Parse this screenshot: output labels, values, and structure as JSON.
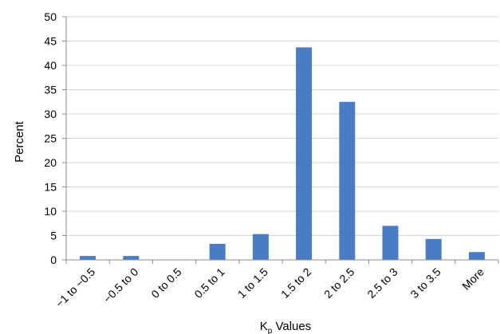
{
  "chart_data": {
    "type": "bar",
    "categories": [
      "−1 to −0.5",
      "−0.5 to 0",
      "0 to 0.5",
      "0.5 to 1",
      "1 to 1.5",
      "1.5 to 2",
      "2 to 2.5",
      "2.5 to 3",
      "3 to 3.5",
      "More"
    ],
    "values": [
      0.8,
      0.8,
      0,
      3.3,
      5.3,
      43.7,
      32.5,
      7.0,
      4.3,
      1.6
    ],
    "xlabel_main": "K",
    "xlabel_sub": "p",
    "xlabel_rest": " Values",
    "ylabel": "Percent",
    "ylim": [
      0,
      50
    ],
    "yticks": [
      0,
      5,
      10,
      15,
      20,
      25,
      30,
      35,
      40,
      45,
      50
    ],
    "grid": true,
    "colors": {
      "bar": "#4a7cc4"
    }
  }
}
